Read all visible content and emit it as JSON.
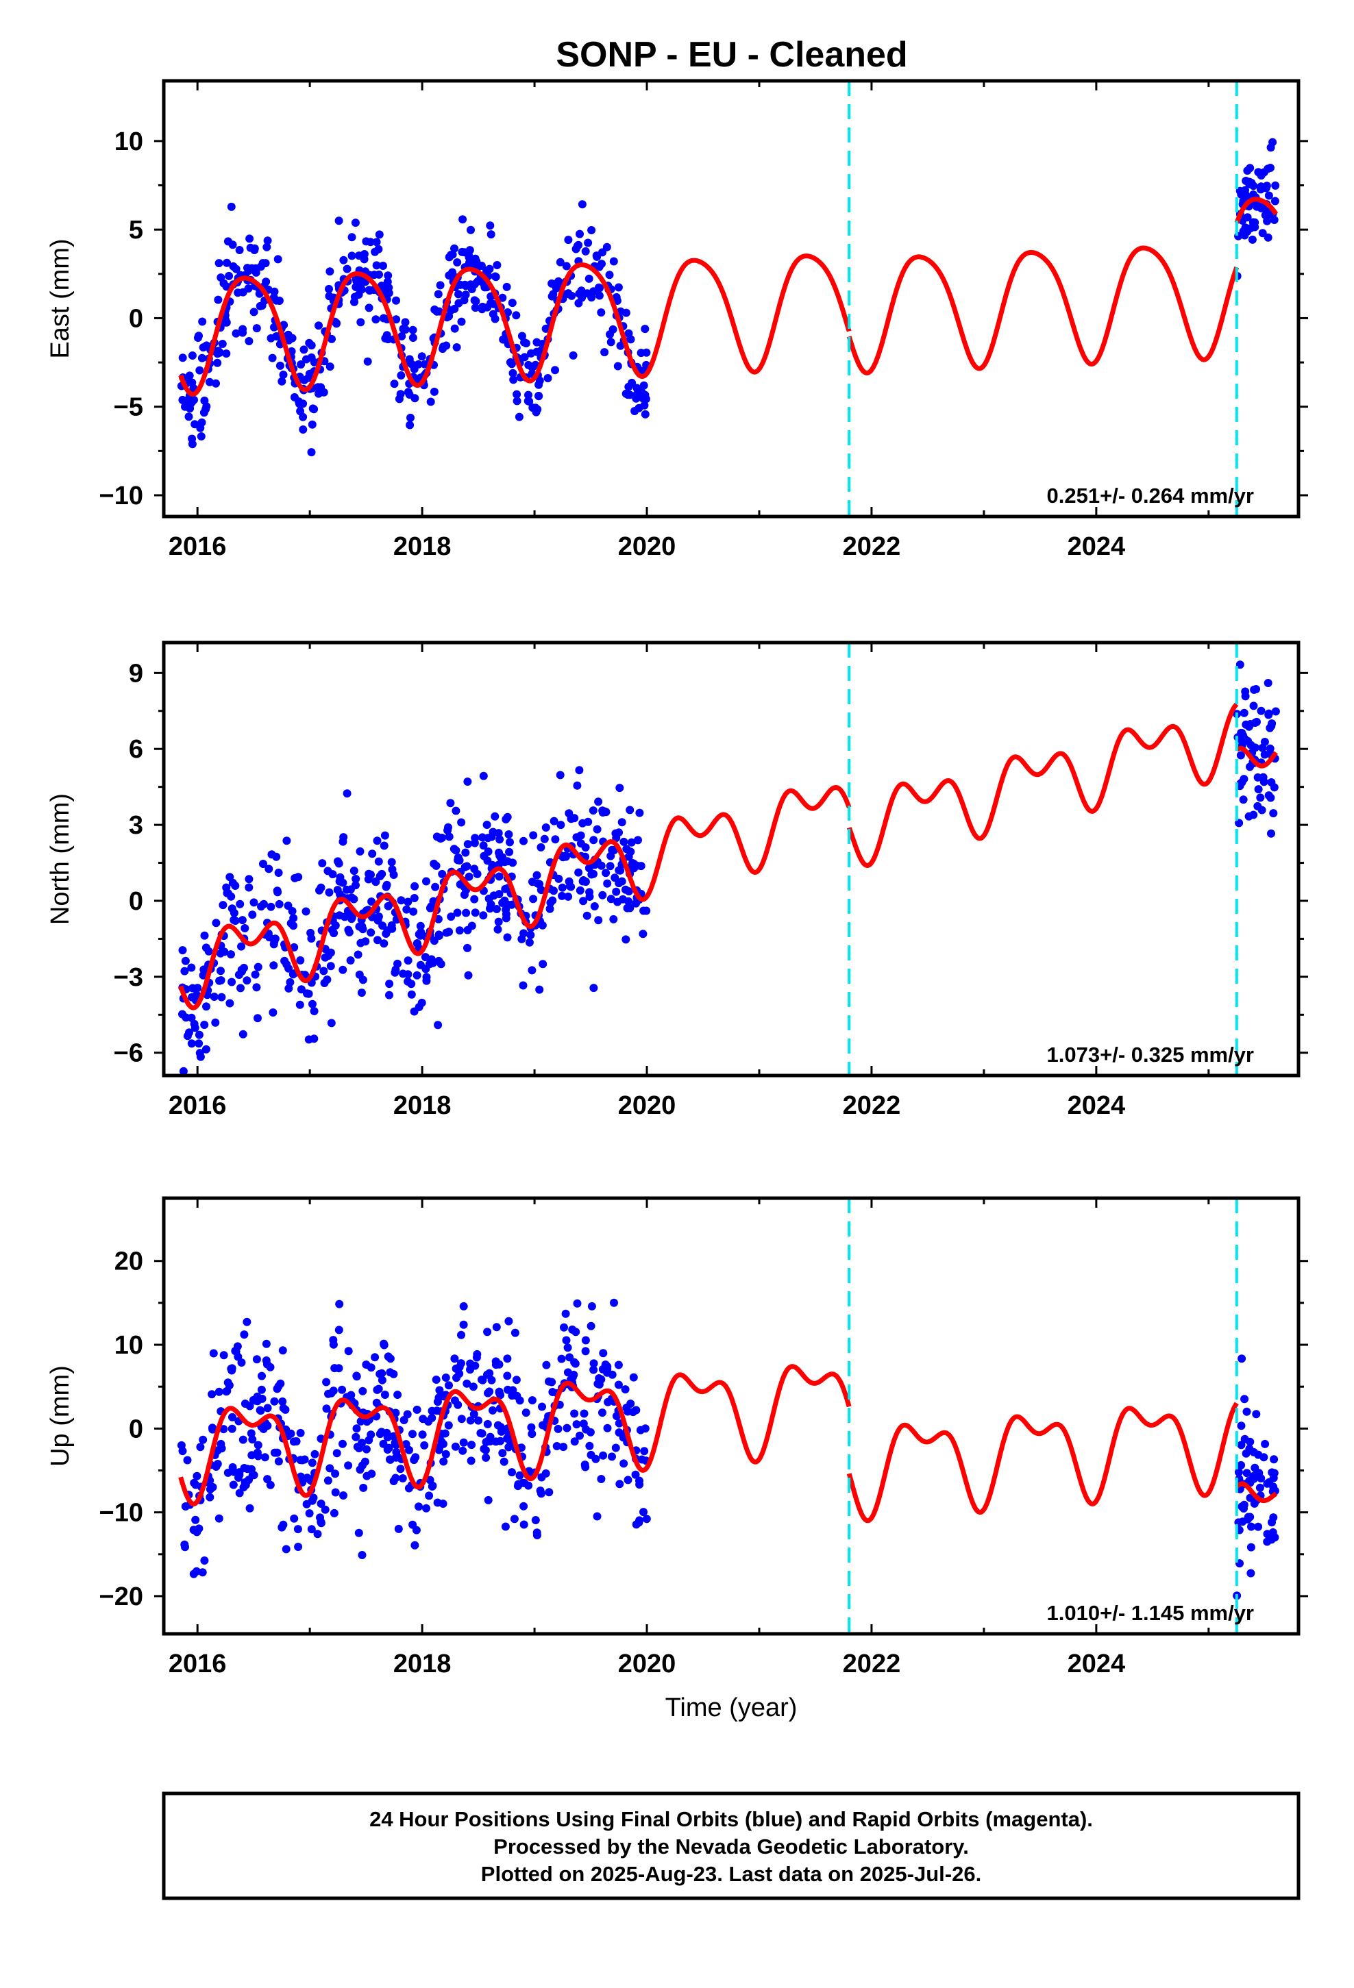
{
  "title": "SONP  - EU - Cleaned",
  "colors": {
    "data": "#0000ff",
    "model": "#ff0000",
    "break": "#00e5ee",
    "frame": "#000000"
  },
  "chart_data": [
    {
      "type": "scatter",
      "component": "East",
      "ylabel": "East (mm)",
      "xlabel": "",
      "xlim": [
        2015.7,
        2025.8
      ],
      "ylim": [
        -11.2,
        13.4
      ],
      "xticks": [
        2016,
        2018,
        2020,
        2022,
        2024
      ],
      "yticks": [
        -10,
        -5,
        0,
        5,
        10
      ],
      "ytick_labels": [
        "−10",
        "−5",
        "0",
        "5",
        "10"
      ],
      "rate_text": "0.251+/- 0.264 mm/yr",
      "data_span": [
        2015.85,
        2020.0
      ],
      "data_span2": [
        2025.25,
        2025.6
      ],
      "model": {
        "trend": 0.25,
        "amp1": 3.2,
        "amp2": 0.5,
        "seg_offsets": [
          -0.6,
          -0.9,
          1.6
        ],
        "noise": 1.4,
        "n_points": 560
      },
      "breaks": [
        2021.8,
        2025.25
      ]
    },
    {
      "type": "scatter",
      "component": "North",
      "ylabel": "North (mm)",
      "xlabel": "",
      "xlim": [
        2015.7,
        2025.8
      ],
      "ylim": [
        -6.9,
        10.2
      ],
      "xticks": [
        2016,
        2018,
        2020,
        2022,
        2024
      ],
      "yticks": [
        -6,
        -3,
        0,
        3,
        6,
        9
      ],
      "ytick_labels": [
        "−6",
        "−3",
        "0",
        "3",
        "6",
        "9"
      ],
      "rate_text": "1.073+/- 0.325 mm/yr",
      "data_span": [
        2015.85,
        2020.0
      ],
      "data_span2": [
        2025.25,
        2025.6
      ],
      "model": {
        "trend": 1.07,
        "amp1": 1.0,
        "amp2": 0.8,
        "seg_offsets": [
          -2.4,
          -3.2,
          -5.0
        ],
        "noise": 1.6,
        "n_points": 560
      },
      "breaks": [
        2021.8,
        2025.25
      ]
    },
    {
      "type": "scatter",
      "component": "Up",
      "ylabel": "Up (mm)",
      "xlabel": "Time (year)",
      "xlim": [
        2015.7,
        2025.8
      ],
      "ylim": [
        -24.5,
        27.5
      ],
      "xticks": [
        2016,
        2018,
        2020,
        2022,
        2024
      ],
      "yticks": [
        -20,
        -10,
        0,
        10,
        20
      ],
      "ytick_labels": [
        "−20",
        "−10",
        "0",
        "10",
        "20"
      ],
      "rate_text": "1.010+/- 1.145 mm/yr",
      "data_span": [
        2015.85,
        2020.0
      ],
      "data_span2": [
        2025.25,
        2025.6
      ],
      "model": {
        "trend": 1.0,
        "amp1": 4.5,
        "amp2": 2.5,
        "seg_offsets": [
          -2.0,
          -10.0,
          -20.0
        ],
        "noise": 5.0,
        "n_points": 560
      },
      "breaks": [
        2021.8,
        2025.25
      ]
    }
  ],
  "footer": {
    "line1": "24 Hour Positions Using Final Orbits (blue) and Rapid Orbits (magenta).",
    "line2": "Processed by the Nevada Geodetic Laboratory.",
    "line3": "Plotted on 2025-Aug-23. Last data on 2025-Jul-26."
  }
}
